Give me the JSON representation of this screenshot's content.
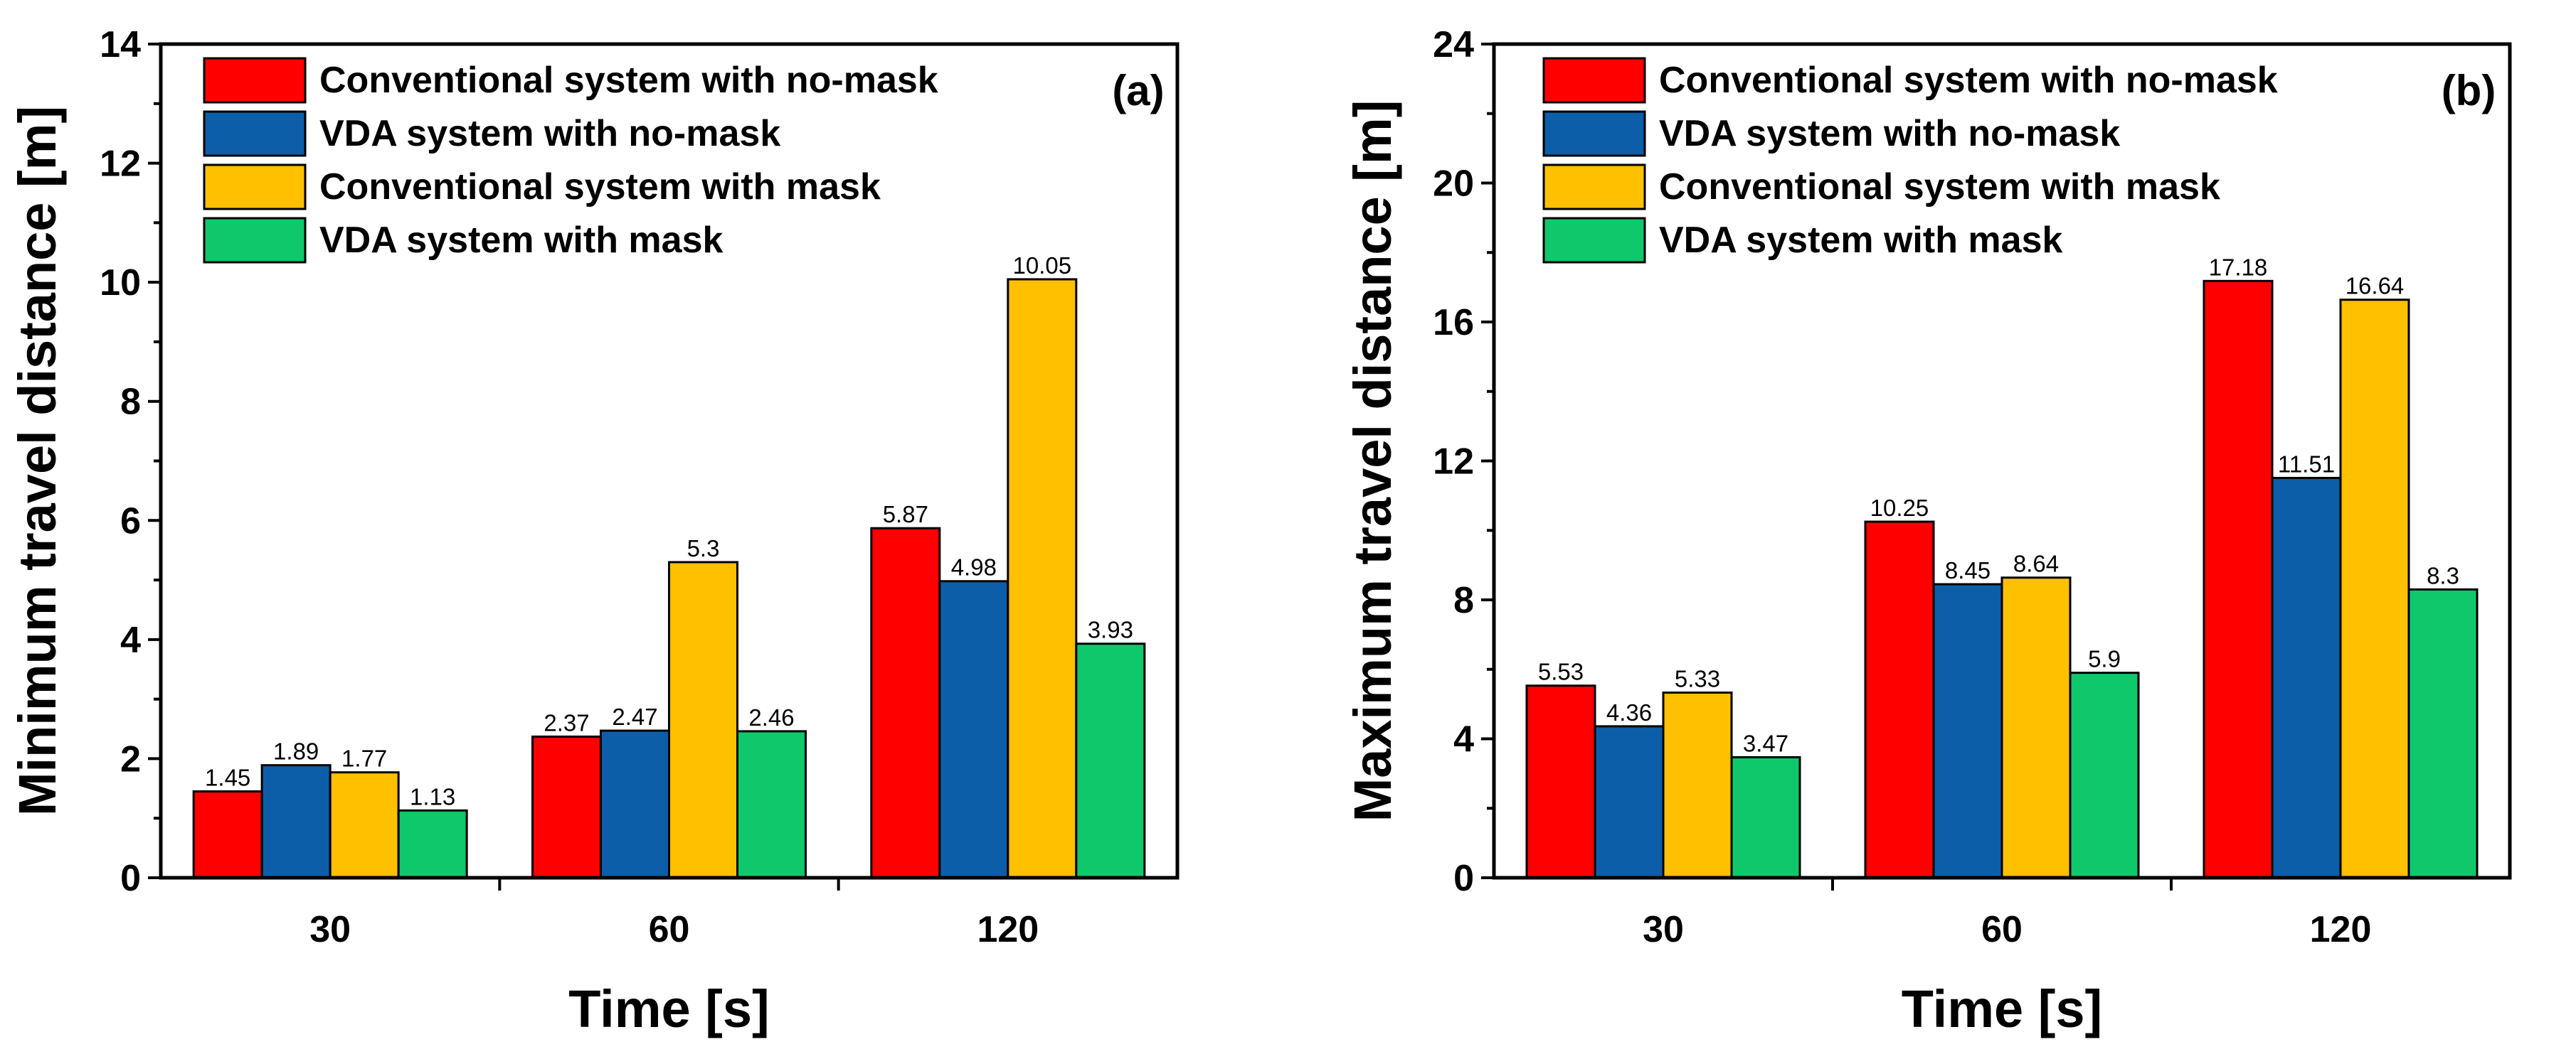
{
  "colors": {
    "conv_nomask": "#ff0000",
    "vda_nomask": "#0d5ea8",
    "conv_mask": "#ffc000",
    "vda_mask": "#10c86c"
  },
  "chart_data": [
    {
      "type": "bar",
      "panel": "(a)",
      "xlabel": "Time [s]",
      "ylabel": "Minimum travel distance [m]",
      "categories": [
        "30",
        "60",
        "120"
      ],
      "ylim": [
        0,
        14
      ],
      "yticks": [
        0,
        2,
        4,
        6,
        8,
        10,
        12,
        14
      ],
      "legend_position": "top-left",
      "series": [
        {
          "name": "Conventional system with no-mask",
          "color_key": "conv_nomask",
          "values": [
            1.45,
            2.37,
            5.87
          ],
          "labels": [
            "1.45",
            "2.37",
            "5.87"
          ]
        },
        {
          "name": "VDA system with no-mask",
          "color_key": "vda_nomask",
          "values": [
            1.89,
            2.47,
            4.98
          ],
          "labels": [
            "1.89",
            "2.47",
            "4.98"
          ]
        },
        {
          "name": "Conventional system with mask",
          "color_key": "conv_mask",
          "values": [
            1.77,
            5.3,
            10.05
          ],
          "labels": [
            "1.77",
            "5.3",
            "10.05"
          ]
        },
        {
          "name": "VDA system with mask",
          "color_key": "vda_mask",
          "values": [
            1.13,
            2.46,
            3.93
          ],
          "labels": [
            "1.13",
            "2.46",
            "3.93"
          ]
        }
      ]
    },
    {
      "type": "bar",
      "panel": "(b)",
      "xlabel": "Time [s]",
      "ylabel": "Maximum travel distance [m]",
      "categories": [
        "30",
        "60",
        "120"
      ],
      "ylim": [
        0,
        24
      ],
      "yticks": [
        0,
        4,
        8,
        12,
        16,
        20,
        24
      ],
      "legend_position": "top-left",
      "series": [
        {
          "name": "Conventional system with no-mask",
          "color_key": "conv_nomask",
          "values": [
            5.53,
            10.25,
            17.18
          ],
          "labels": [
            "5.53",
            "10.25",
            "17.18"
          ]
        },
        {
          "name": "VDA system with no-mask",
          "color_key": "vda_nomask",
          "values": [
            4.36,
            8.45,
            11.51
          ],
          "labels": [
            "4.36",
            "8.45",
            "11.51"
          ]
        },
        {
          "name": "Conventional system with mask",
          "color_key": "conv_mask",
          "values": [
            5.33,
            8.64,
            16.64
          ],
          "labels": [
            "5.33",
            "8.64",
            "16.64"
          ]
        },
        {
          "name": "VDA system with mask",
          "color_key": "vda_mask",
          "values": [
            3.47,
            5.9,
            8.3
          ],
          "labels": [
            "3.47",
            "5.9",
            "8.3"
          ]
        }
      ]
    }
  ]
}
